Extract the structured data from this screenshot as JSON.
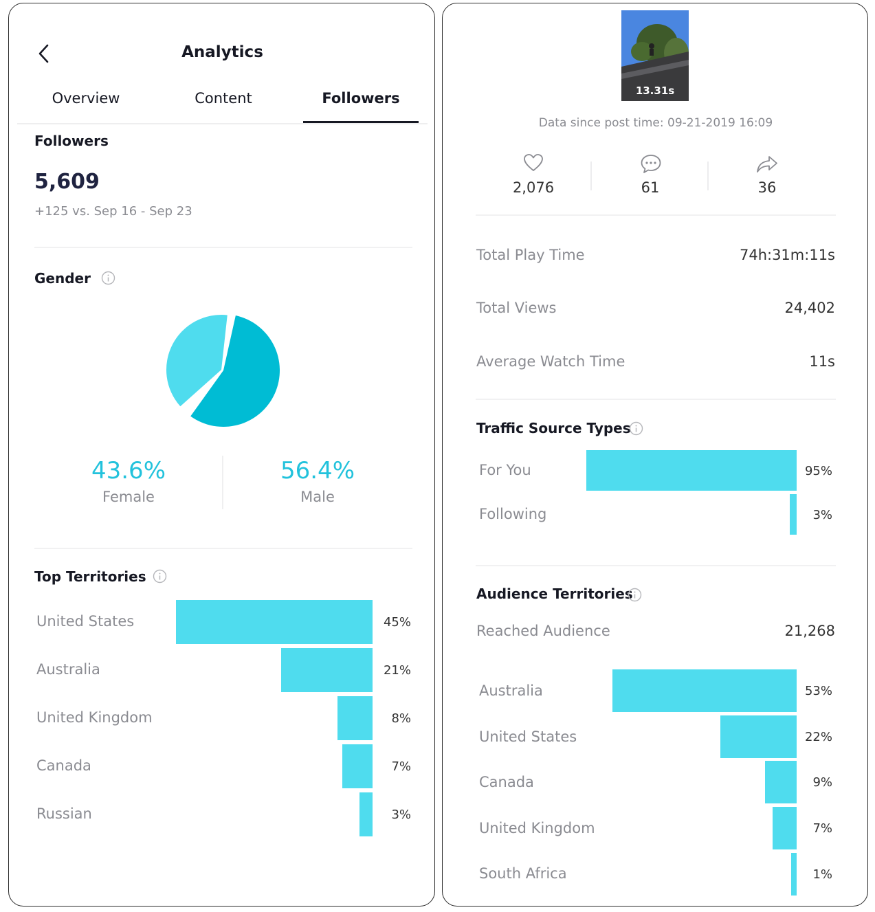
{
  "left": {
    "header": {
      "title": "Analytics"
    },
    "tabs": [
      {
        "label": "Overview",
        "active": false
      },
      {
        "label": "Content",
        "active": false
      },
      {
        "label": "Followers",
        "active": true
      }
    ],
    "followers": {
      "title": "Followers",
      "count": "5,609",
      "change": "+125 vs. Sep 16 - Sep 23"
    },
    "gender": {
      "title": "Gender",
      "female": {
        "pct": "43.6%",
        "label": "Female",
        "value": 43.6
      },
      "male": {
        "pct": "56.4%",
        "label": "Male",
        "value": 56.4
      }
    },
    "territories": {
      "title": "Top Territories",
      "items": [
        {
          "name": "United States",
          "pct": "45%",
          "value": 45
        },
        {
          "name": "Australia",
          "pct": "21%",
          "value": 21
        },
        {
          "name": "United Kingdom",
          "pct": "8%",
          "value": 8
        },
        {
          "name": "Canada",
          "pct": "7%",
          "value": 7
        },
        {
          "name": "Russian",
          "pct": "3%",
          "value": 3
        }
      ]
    }
  },
  "right": {
    "video": {
      "duration": "13.31s",
      "since": "Data since post time: 09-21-2019 16:09"
    },
    "stats": {
      "likes": "2,076",
      "comments": "61",
      "shares": "36"
    },
    "metrics": [
      {
        "label": "Total Play Time",
        "value": "74h:31m:11s"
      },
      {
        "label": "Total Views",
        "value": "24,402"
      },
      {
        "label": "Average Watch Time",
        "value": "11s"
      }
    ],
    "traffic": {
      "title": "Traffic Source Types",
      "items": [
        {
          "name": "For You",
          "pct": "95%",
          "value": 95
        },
        {
          "name": "Following",
          "pct": "3%",
          "value": 3
        }
      ]
    },
    "audience": {
      "title": "Audience Territories",
      "reached_label": "Reached Audience",
      "reached_value": "21,268",
      "items": [
        {
          "name": "Australia",
          "pct": "53%",
          "value": 53
        },
        {
          "name": "United States",
          "pct": "22%",
          "value": 22
        },
        {
          "name": "Canada",
          "pct": "9%",
          "value": 9
        },
        {
          "name": "United Kingdom",
          "pct": "7%",
          "value": 7
        },
        {
          "name": "South Africa",
          "pct": "1%",
          "value": 1
        }
      ]
    }
  },
  "colors": {
    "bar": "#4fdcee",
    "pie_female": "#4fdcee",
    "pie_male": "#00bcd4",
    "accent_text": "#22c2dc"
  }
}
